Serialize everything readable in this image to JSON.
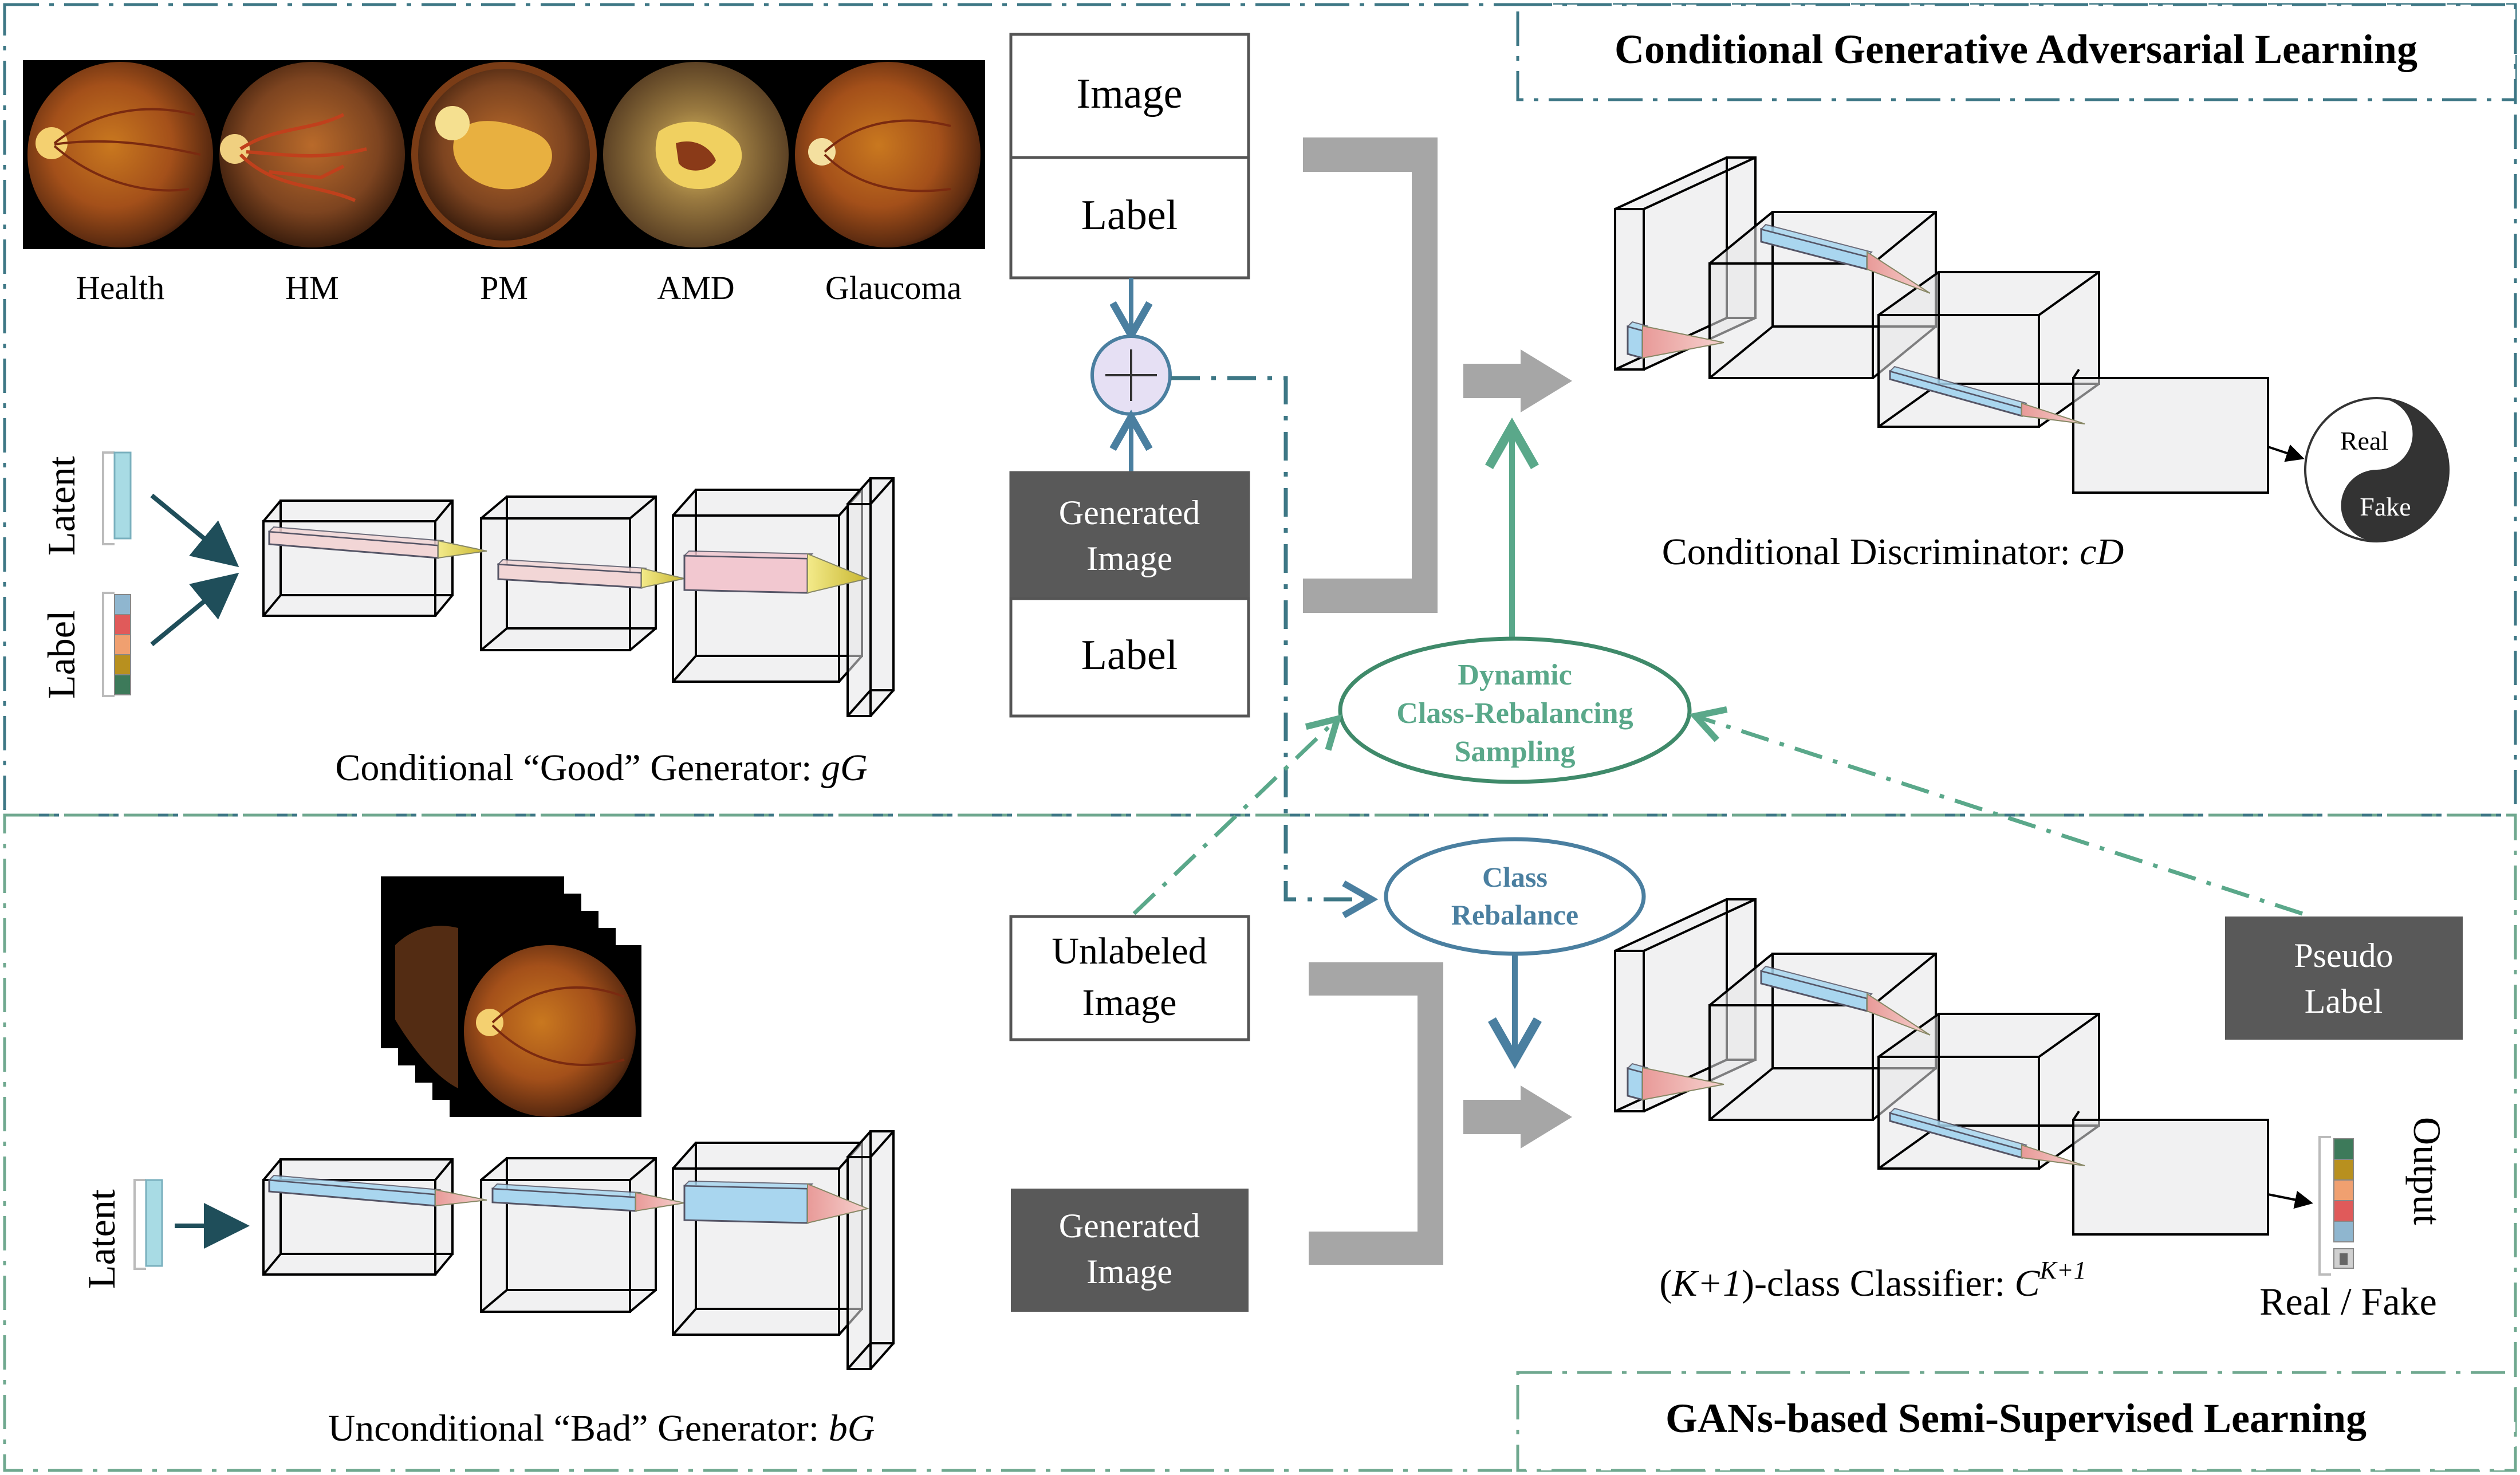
{
  "sections": {
    "top_title": "Conditional Generative Adversarial Learning",
    "bottom_title": "GANs-based Semi-Supervised Learning"
  },
  "fundus": {
    "labels": [
      "Health",
      "HM",
      "PM",
      "AMD",
      "Glaucoma"
    ]
  },
  "inputs": {
    "latent": "Latent",
    "label": "Label",
    "latent_bottom": "Latent"
  },
  "boxes": {
    "image": "Image",
    "label_top": "Label",
    "generated_image_line1": "Generated",
    "generated_image_line2": "Image",
    "label_bottom": "Label",
    "unlabeled_line1": "Unlabeled",
    "unlabeled_line2": "Image",
    "generated2_line1": "Generated",
    "generated2_line2": "Image",
    "pseudo_line1": "Pseudo",
    "pseudo_line2": "Label"
  },
  "generators": {
    "good_prefix": "Conditional “Good” Generator: ",
    "good_var": "gG",
    "bad_prefix": "Unconditional “Bad” Generator: ",
    "bad_var": "bG"
  },
  "discriminator": {
    "prefix": "Conditional Discriminator: ",
    "var": "cD",
    "real": "Real",
    "fake": "Fake"
  },
  "classifier": {
    "k_open": "(",
    "k_var": "K+1",
    "k_close": ")",
    "rest": "-class Classifier: ",
    "c_var": "C",
    "c_sup": "K+1",
    "output_label": "Output",
    "real_fake": "Real / Fake"
  },
  "ellipses": {
    "dynamic_line1": "Dynamic",
    "dynamic_line2": "Class-Rebalancing",
    "dynamic_line3": "Sampling",
    "rebalance_line1": "Class",
    "rebalance_line2": "Rebalance"
  },
  "colors": {
    "teal_dark": "#2b6b7a",
    "green": "#5aa88a",
    "blue_text": "#4a7fa0",
    "gray_block": "#595959",
    "gray_bracket": "#a6a6a6",
    "arrow_dark": "#1f4e5a"
  },
  "label_vector_colors": [
    "#8fb6cf",
    "#e05a5a",
    "#f0a070",
    "#b8901f",
    "#3d7a5a"
  ],
  "output_vector_colors": [
    "#3d7a5a",
    "#b8901f",
    "#f0a070",
    "#e05a5a",
    "#8fb6cf"
  ]
}
